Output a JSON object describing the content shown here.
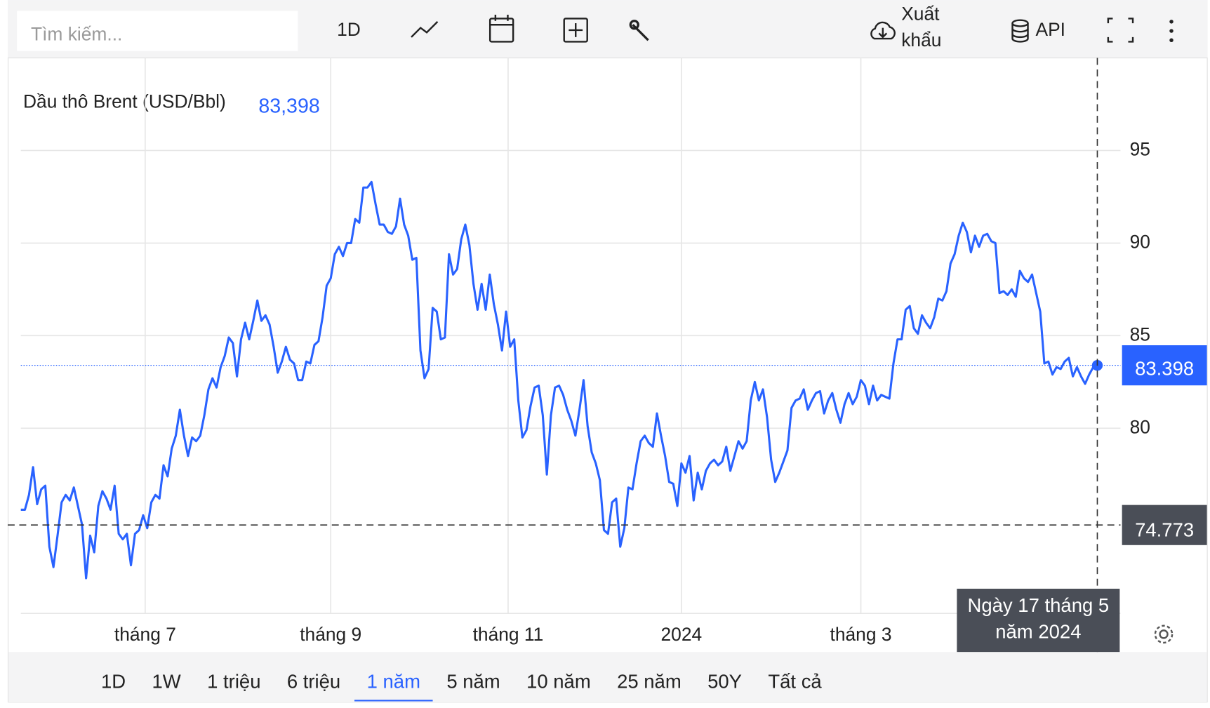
{
  "toolbar": {
    "search_placeholder": "Tìm kiếm...",
    "interval": "1D",
    "export": "Xuất khẩu",
    "api": "API"
  },
  "chart_data": {
    "type": "line",
    "title": "Dầu thô Brent (USD/Bbl)",
    "legend_value_label": "83,398",
    "series": [
      {
        "name": "Dầu thô Brent",
        "color": "#2962ff",
        "values": [
          75.6,
          75.6,
          76.4,
          77.9,
          75.9,
          76.7,
          76.9,
          73.6,
          72.5,
          74.2,
          76.0,
          76.4,
          76.1,
          76.8,
          75.8,
          74.8,
          71.9,
          74.2,
          73.3,
          75.8,
          76.6,
          76.2,
          75.6,
          76.9,
          74.3,
          74.0,
          74.3,
          72.6,
          74.3,
          74.5,
          75.3,
          74.6,
          76.0,
          76.4,
          76.2,
          78.0,
          77.4,
          78.9,
          79.6,
          81.0,
          79.6,
          78.5,
          79.5,
          79.3,
          79.6,
          80.7,
          82.1,
          82.7,
          82.2,
          83.3,
          83.9,
          84.9,
          84.6,
          82.8,
          84.8,
          85.7,
          84.8,
          85.8,
          86.9,
          85.8,
          86.1,
          85.6,
          84.4,
          83.0,
          83.6,
          84.4,
          83.7,
          83.5,
          82.6,
          82.6,
          83.6,
          83.5,
          84.5,
          84.7,
          86.0,
          87.7,
          88.1,
          89.4,
          89.8,
          89.3,
          90.0,
          90.0,
          91.3,
          91.1,
          93.0,
          93.0,
          93.3,
          92.1,
          91.0,
          91.0,
          90.6,
          90.5,
          90.9,
          92.4,
          91.0,
          90.4,
          89.1,
          89.2,
          84.2,
          82.7,
          83.2,
          86.5,
          86.3,
          84.8,
          84.9,
          89.4,
          88.3,
          88.6,
          90.2,
          91.0,
          89.9,
          87.8,
          86.4,
          87.8,
          86.4,
          88.3,
          86.7,
          85.6,
          84.2,
          86.3,
          84.4,
          84.8,
          81.5,
          79.5,
          79.9,
          81.2,
          82.2,
          82.3,
          80.7,
          77.5,
          80.7,
          82.2,
          82.3,
          81.8,
          81.0,
          80.4,
          79.6,
          81.0,
          82.6,
          80.1,
          78.7,
          78.1,
          77.2,
          74.5,
          74.3,
          76.0,
          76.2,
          73.6,
          74.6,
          76.8,
          76.7,
          78.1,
          79.3,
          79.6,
          79.2,
          79.0,
          80.8,
          79.6,
          78.5,
          77.1,
          77.0,
          75.8,
          78.1,
          77.6,
          78.5,
          76.1,
          77.6,
          76.7,
          77.7,
          78.1,
          78.3,
          78.0,
          78.2,
          79.0,
          77.7,
          78.5,
          79.3,
          78.9,
          79.3,
          81.5,
          82.5,
          81.5,
          82.1,
          80.6,
          78.3,
          77.1,
          77.6,
          78.2,
          78.8,
          81.1,
          81.5,
          81.6,
          82.1,
          81.0,
          81.5,
          81.9,
          82.0,
          80.8,
          81.5,
          81.9,
          81.0,
          80.3,
          81.3,
          81.9,
          81.3,
          81.7,
          82.6,
          82.3,
          81.3,
          82.3,
          81.5,
          81.8,
          81.7,
          81.6,
          83.5,
          84.8,
          84.8,
          86.4,
          86.6,
          85.4,
          85.1,
          86.1,
          85.7,
          85.4,
          86.0,
          87.0,
          86.9,
          87.4,
          88.9,
          89.4,
          90.4,
          91.1,
          90.6,
          89.5,
          90.4,
          89.8,
          90.4,
          90.5,
          90.1,
          90.0,
          87.3,
          87.4,
          87.2,
          87.5,
          87.1,
          88.5,
          88.1,
          87.9,
          88.3,
          87.3,
          86.3,
          83.5,
          83.6,
          82.9,
          83.3,
          83.2,
          83.6,
          83.8,
          82.8,
          83.3,
          82.8,
          82.4,
          82.9,
          83.3,
          83.398
        ]
      }
    ],
    "xlim": [
      0,
      264
    ],
    "xticks": [
      {
        "value": 30.5,
        "label": "tháng 7"
      },
      {
        "value": 76,
        "label": "tháng 9"
      },
      {
        "value": 119.5,
        "label": "tháng 11"
      },
      {
        "value": 162,
        "label": "2024"
      },
      {
        "value": 206,
        "label": "tháng 3"
      }
    ],
    "ylim": [
      70,
      100
    ],
    "yticks": [
      80,
      85,
      90,
      95
    ],
    "grid": true,
    "crosshair": {
      "value": 74.773,
      "date_label": "Ngày 17 tháng 5 năm 2024"
    }
  },
  "ranges": {
    "items": [
      "1D",
      "1W",
      "1 triệu",
      "6 triệu",
      "1 năm",
      "5 năm",
      "10 năm",
      "25 năm",
      "50Y",
      "Tất cả"
    ],
    "selected": "1 năm"
  }
}
